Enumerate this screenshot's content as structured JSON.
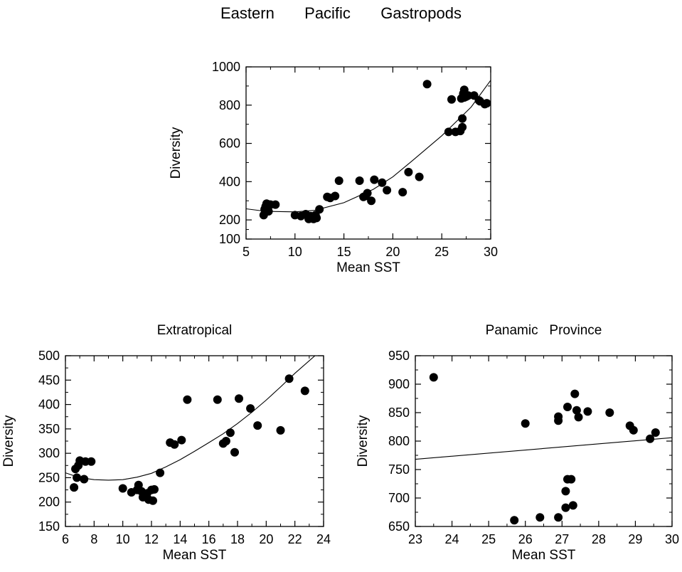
{
  "title": "Eastern   Pacific   Gastropods",
  "chart_data": [
    {
      "type": "scatter",
      "title": "",
      "xlabel": "Mean SST",
      "ylabel": "Diversity",
      "xlim": [
        5,
        30
      ],
      "ylim": [
        100,
        1000
      ],
      "xticks": [
        5,
        10,
        15,
        20,
        25,
        30
      ],
      "yticks": [
        100,
        200,
        400,
        600,
        800,
        1000
      ],
      "series": [
        {
          "x": [
            6.8,
            6.9,
            7.0,
            7.1,
            7.3,
            7.4,
            7.5,
            8.0,
            10.0,
            10.6,
            11.1,
            11.4,
            11.6,
            11.7,
            11.9,
            12.1,
            12.2,
            12.5,
            13.3,
            13.6,
            14.1,
            14.5,
            16.6,
            17.0,
            17.2,
            17.4,
            17.8,
            18.1,
            18.9,
            19.4,
            21.0,
            21.6,
            22.7,
            23.5,
            25.7,
            26.0,
            26.4,
            26.9,
            27.0,
            27.1,
            27.1,
            27.2,
            27.3,
            27.3,
            27.5,
            27.7,
            28.3,
            28.8,
            28.9,
            29.4,
            29.6
          ],
          "y": [
            225,
            255,
            270,
            285,
            245,
            280,
            280,
            280,
            225,
            220,
            230,
            205,
            220,
            210,
            205,
            225,
            210,
            255,
            320,
            315,
            325,
            405,
            405,
            320,
            325,
            340,
            300,
            410,
            395,
            355,
            345,
            450,
            425,
            910,
            660,
            830,
            660,
            665,
            835,
            685,
            730,
            860,
            840,
            880,
            845,
            850,
            850,
            825,
            820,
            805,
            810
          ]
        }
      ],
      "fit": {
        "type": "quadratic",
        "x": [
          5,
          30
        ],
        "curve": [
          [
            5,
            258
          ],
          [
            7,
            245
          ],
          [
            10,
            242
          ],
          [
            12,
            250
          ],
          [
            15,
            290
          ],
          [
            18,
            360
          ],
          [
            20,
            425
          ],
          [
            22,
            510
          ],
          [
            25,
            640
          ],
          [
            28,
            790
          ],
          [
            30,
            930
          ]
        ]
      }
    },
    {
      "type": "scatter",
      "title": "Extratropical",
      "xlabel": "Mean SST",
      "ylabel": "Diversity",
      "xlim": [
        6,
        24
      ],
      "ylim": [
        150,
        500
      ],
      "xticks": [
        6,
        8,
        10,
        12,
        14,
        16,
        18,
        20,
        22,
        24
      ],
      "yticks": [
        150,
        200,
        250,
        300,
        350,
        400,
        450,
        500
      ],
      "series": [
        {
          "x": [
            6.6,
            6.7,
            6.8,
            6.9,
            7.0,
            7.3,
            7.4,
            7.8,
            10.0,
            10.6,
            11.0,
            11.1,
            11.3,
            11.4,
            11.7,
            11.8,
            12.0,
            12.1,
            12.2,
            12.6,
            13.3,
            13.6,
            14.1,
            14.5,
            16.6,
            17.0,
            17.2,
            17.5,
            17.8,
            18.1,
            18.9,
            19.4,
            21.0,
            21.6,
            22.7
          ],
          "y": [
            230,
            268,
            250,
            275,
            285,
            247,
            283,
            283,
            228,
            220,
            225,
            235,
            222,
            210,
            218,
            205,
            225,
            203,
            226,
            260,
            322,
            318,
            327,
            410,
            410,
            320,
            325,
            342,
            302,
            412,
            392,
            357,
            347,
            453,
            428
          ]
        }
      ],
      "fit": {
        "type": "quadratic",
        "x": [
          6,
          24
        ],
        "curve": [
          [
            6,
            260
          ],
          [
            7,
            250
          ],
          [
            8,
            246
          ],
          [
            9,
            245
          ],
          [
            10,
            246
          ],
          [
            11,
            251
          ],
          [
            12,
            259
          ],
          [
            13,
            272
          ],
          [
            14,
            287
          ],
          [
            15,
            304
          ],
          [
            16,
            322
          ],
          [
            17,
            340
          ],
          [
            18,
            361
          ],
          [
            19,
            384
          ],
          [
            20,
            409
          ],
          [
            21,
            436
          ],
          [
            22,
            464
          ],
          [
            23.4,
            500
          ]
        ]
      }
    },
    {
      "type": "scatter",
      "title": "Panamic   Province",
      "xlabel": "Mean SST",
      "ylabel": "Diversity",
      "xlim": [
        23,
        30
      ],
      "ylim": [
        650,
        950
      ],
      "xticks": [
        23,
        24,
        25,
        26,
        27,
        28,
        29,
        30
      ],
      "yticks": [
        650,
        700,
        750,
        800,
        850,
        900,
        950
      ],
      "series": [
        {
          "x": [
            23.5,
            26.0,
            25.7,
            26.4,
            26.9,
            26.9,
            26.9,
            27.1,
            27.1,
            27.15,
            27.15,
            27.25,
            27.3,
            27.35,
            27.4,
            27.45,
            27.7,
            28.3,
            28.85,
            28.95,
            29.4,
            29.55
          ],
          "y": [
            912,
            831,
            661,
            666,
            843,
            836,
            666,
            712,
            683,
            733,
            860,
            733,
            687,
            883,
            854,
            842,
            852,
            850,
            827,
            819,
            804,
            815
          ]
        }
      ],
      "fit": {
        "type": "linear",
        "x": [
          23,
          30
        ],
        "y": [
          768,
          806
        ]
      }
    }
  ]
}
